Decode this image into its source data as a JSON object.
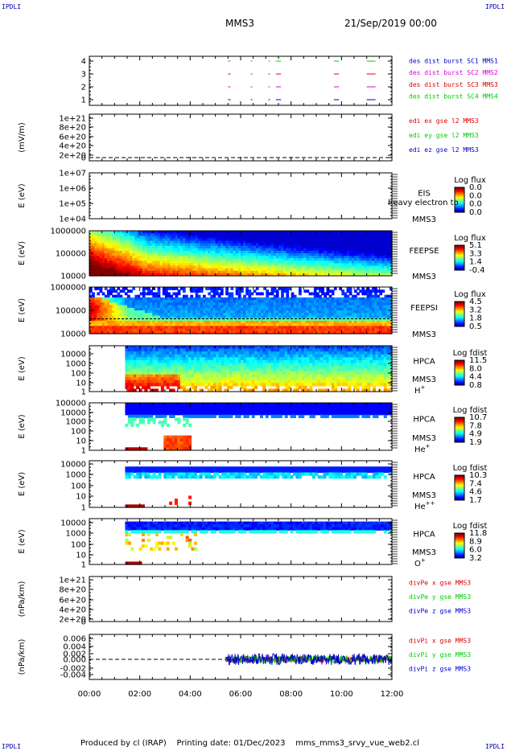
{
  "header": {
    "corner_tl": "IPDLI",
    "corner_tr": "IPDLI",
    "corner_bl": "IPDLI",
    "corner_br": "IPDLI",
    "spacecraft": "MMS3",
    "datetime": "21/Sep/2019 00:00"
  },
  "footer": {
    "produced_by": "Produced by cl (IRAP)",
    "printing_date": "Printing date: 01/Dec/2023",
    "file_name": "mms_mms3_srvy_vue_web2.cl"
  },
  "colors": {
    "red": "#e00000",
    "green": "#00cc00",
    "blue": "#0000cc",
    "magenta": "#e000e0"
  },
  "chart_data": [
    {
      "id": "burst",
      "type": "scatter",
      "ylabel": "",
      "yticks": [
        "4",
        "3",
        "2",
        "1"
      ],
      "legend": [
        {
          "label": "des dist burst SC1 MMS1",
          "color": "#0000cc"
        },
        {
          "label": "des dist burst SC2 MMS2",
          "color": "#e000e0"
        },
        {
          "label": "des dist burst SC3 MMS3",
          "color": "#e00000"
        },
        {
          "label": "des dist burst SC4 MMS4",
          "color": "#00cc00"
        }
      ],
      "intervals_hours": [
        [
          5.5,
          5.6
        ],
        [
          6.4,
          6.45
        ],
        [
          7.1,
          7.15
        ],
        [
          7.4,
          7.6
        ],
        [
          9.7,
          9.9
        ],
        [
          11.0,
          11.35
        ]
      ]
    },
    {
      "id": "edi",
      "type": "line",
      "ylabel": "(mV/m)",
      "yticks": [
        "1e+21",
        "8e+20",
        "6e+20",
        "4e+20",
        "2e+20",
        "0"
      ],
      "legend": [
        {
          "label": "edi ex gse l2 MMS3",
          "color": "#e00000"
        },
        {
          "label": "edi ey gse l2 MMS3",
          "color": "#00cc00"
        },
        {
          "label": "edi ez gse l2 MMS3",
          "color": "#0000cc"
        }
      ]
    },
    {
      "id": "eis",
      "type": "heatmap",
      "ylabel": "E (eV)",
      "yticks": [
        "1e+07",
        "1e+06",
        "1e+05",
        "1e+04"
      ],
      "instrument": "EIS",
      "spacecraft": "MMS3",
      "species": "heavy electron to",
      "colorbar": {
        "title": "Log flux",
        "ticks": [
          "0.0",
          "0.0",
          "0.0",
          "0.0"
        ]
      }
    },
    {
      "id": "feepse",
      "type": "heatmap",
      "ylabel": "E (eV)",
      "yticks": [
        "1000000",
        "100000",
        "10000"
      ],
      "instrument": "FEEPSE",
      "spacecraft": "MMS3",
      "colorbar": {
        "title": "Log flux",
        "ticks": [
          "5.1",
          "3.3",
          "1.4",
          "-0.4"
        ]
      }
    },
    {
      "id": "feepsi",
      "type": "heatmap",
      "ylabel": "E (eV)",
      "yticks": [
        "1000000",
        "100000",
        "10000"
      ],
      "instrument": "FEEPSI",
      "spacecraft": "MMS3",
      "colorbar": {
        "title": "Log flux",
        "ticks": [
          "4.5",
          "3.2",
          "1.8",
          "0.5"
        ]
      }
    },
    {
      "id": "hpca_h",
      "type": "heatmap",
      "ylabel": "E (eV)",
      "yticks": [
        "10000",
        "1000",
        "100",
        "10",
        "1"
      ],
      "instrument": "HPCA",
      "spacecraft": "MMS3",
      "species": "H",
      "charge": "+",
      "colorbar": {
        "title": "Log fdist",
        "ticks": [
          "11.5",
          "8.0",
          "4.4",
          "0.8"
        ]
      },
      "data_start_hour": 1.35
    },
    {
      "id": "hpca_he",
      "type": "heatmap",
      "ylabel": "E (eV)",
      "yticks": [
        "100000",
        "10000",
        "1000",
        "100",
        "10",
        "1"
      ],
      "instrument": "HPCA",
      "spacecraft": "MMS3",
      "species": "He",
      "charge": "+",
      "colorbar": {
        "title": "Log fdist",
        "ticks": [
          "10.7",
          "7.8",
          "4.9",
          "1.9"
        ]
      },
      "data_start_hour": 1.35
    },
    {
      "id": "hpca_he2",
      "type": "heatmap",
      "ylabel": "E (eV)",
      "yticks": [
        "10000",
        "1000",
        "100",
        "10",
        "1"
      ],
      "instrument": "HPCA",
      "spacecraft": "MMS3",
      "species": "He",
      "charge": "++",
      "colorbar": {
        "title": "Log fdist",
        "ticks": [
          "10.3",
          "7.4",
          "4.6",
          "1.7"
        ]
      },
      "data_start_hour": 1.35
    },
    {
      "id": "hpca_o",
      "type": "heatmap",
      "ylabel": "E (eV)",
      "yticks": [
        "10000",
        "1000",
        "100",
        "10",
        "1"
      ],
      "instrument": "HPCA",
      "spacecraft": "MMS3",
      "species": "O",
      "charge": "+",
      "colorbar": {
        "title": "Log fdist",
        "ticks": [
          "11.8",
          "8.9",
          "6.0",
          "3.2"
        ]
      },
      "data_start_hour": 1.35
    },
    {
      "id": "divpe",
      "type": "line",
      "ylabel": "(nPa/km)",
      "yticks": [
        "1e+21",
        "8e+20",
        "6e+20",
        "4e+20",
        "2e+20",
        "0"
      ],
      "legend": [
        {
          "label": "divPe x gse MMS3",
          "color": "#e00000"
        },
        {
          "label": "divPe y gse MMS3",
          "color": "#00cc00"
        },
        {
          "label": "divPe z gse MMS3",
          "color": "#0000cc"
        }
      ]
    },
    {
      "id": "divpi",
      "type": "line",
      "ylabel": "(nPa/km)",
      "yticks": [
        "0.006",
        "0.004",
        "0.002",
        "0.000",
        "-0.002",
        "-0.004"
      ],
      "legend": [
        {
          "label": "divPi x gse MMS3",
          "color": "#e00000"
        },
        {
          "label": "divPi y gse MMS3",
          "color": "#00cc00"
        },
        {
          "label": "divPi z gse MMS3",
          "color": "#0000cc"
        }
      ],
      "data_start_hour": 5.4
    }
  ],
  "x_axis": {
    "ticks": [
      "00:00",
      "02:00",
      "04:00",
      "06:00",
      "08:00",
      "10:00",
      "12:00"
    ],
    "range_hours": [
      0,
      12
    ]
  }
}
